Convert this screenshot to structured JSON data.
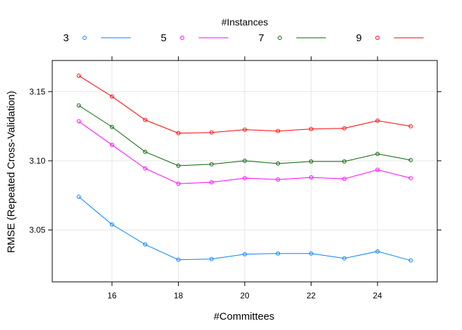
{
  "chart_data": {
    "type": "line",
    "xlabel": "#Committees",
    "ylabel": "RMSE (Repeated Cross-Validation)",
    "legend_title": "#Instances",
    "legend_position": "top",
    "grid": true,
    "xlim": [
      14.2,
      25.8
    ],
    "ylim": [
      3.0125,
      3.1725
    ],
    "x_ticks": [
      16,
      18,
      20,
      22,
      24
    ],
    "y_ticks": [
      3.05,
      3.1,
      3.15
    ],
    "x": [
      15,
      16,
      17,
      18,
      19,
      20,
      21,
      22,
      23,
      24,
      25
    ],
    "series": [
      {
        "name": "3",
        "color": "#0080ff",
        "values": [
          3.074,
          3.054,
          3.0395,
          3.0285,
          3.029,
          3.0325,
          3.033,
          3.033,
          3.0295,
          3.0345,
          3.028
        ]
      },
      {
        "name": "5",
        "color": "#ff00ff",
        "values": [
          3.1285,
          3.1115,
          3.0945,
          3.0835,
          3.0845,
          3.0875,
          3.0865,
          3.088,
          3.087,
          3.0935,
          3.0875
        ]
      },
      {
        "name": "7",
        "color": "#006400",
        "values": [
          3.14,
          3.1245,
          3.1065,
          3.0965,
          3.0975,
          3.1,
          3.098,
          3.0995,
          3.0995,
          3.105,
          3.1005
        ]
      },
      {
        "name": "9",
        "color": "#ff0000",
        "values": [
          3.1615,
          3.1465,
          3.1295,
          3.12,
          3.1205,
          3.1225,
          3.1215,
          3.123,
          3.1235,
          3.129,
          3.125
        ]
      }
    ]
  }
}
